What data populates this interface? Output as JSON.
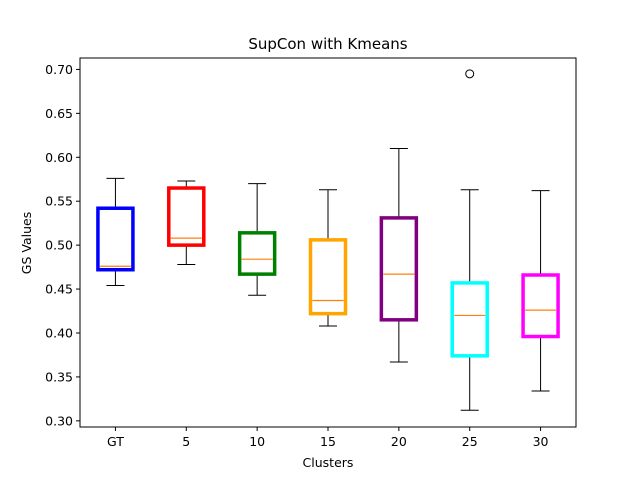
{
  "chart_data": {
    "type": "box",
    "title": "SupCon with Kmeans",
    "xlabel": "Clusters",
    "ylabel": "GS Values",
    "ylim": [
      0.293,
      0.713
    ],
    "yticks": [
      "0.30",
      "0.35",
      "0.40",
      "0.45",
      "0.50",
      "0.55",
      "0.60",
      "0.65",
      "0.70"
    ],
    "categories": [
      "GT",
      "5",
      "10",
      "15",
      "20",
      "25",
      "30"
    ],
    "grid": false,
    "median_color": "#ff7f0e",
    "boxes": [
      {
        "category": "GT",
        "color": "#0000ff",
        "whisker_low": 0.454,
        "q1": 0.472,
        "median": 0.476,
        "q3": 0.542,
        "whisker_high": 0.576,
        "outliers": []
      },
      {
        "category": "5",
        "color": "#ff0000",
        "whisker_low": 0.478,
        "q1": 0.5,
        "median": 0.508,
        "q3": 0.565,
        "whisker_high": 0.573,
        "outliers": []
      },
      {
        "category": "10",
        "color": "#008000",
        "whisker_low": 0.443,
        "q1": 0.467,
        "median": 0.484,
        "q3": 0.514,
        "whisker_high": 0.57,
        "outliers": []
      },
      {
        "category": "15",
        "color": "#ffa500",
        "whisker_low": 0.408,
        "q1": 0.422,
        "median": 0.437,
        "q3": 0.506,
        "whisker_high": 0.563,
        "outliers": []
      },
      {
        "category": "20",
        "color": "#800080",
        "whisker_low": 0.367,
        "q1": 0.415,
        "median": 0.467,
        "q3": 0.531,
        "whisker_high": 0.61,
        "outliers": []
      },
      {
        "category": "25",
        "color": "#00ffff",
        "whisker_low": 0.312,
        "q1": 0.374,
        "median": 0.42,
        "q3": 0.457,
        "whisker_high": 0.563,
        "outliers": [
          0.695
        ]
      },
      {
        "category": "30",
        "color": "#ff00ff",
        "whisker_low": 0.334,
        "q1": 0.396,
        "median": 0.426,
        "q3": 0.466,
        "whisker_high": 0.562,
        "outliers": []
      }
    ]
  }
}
